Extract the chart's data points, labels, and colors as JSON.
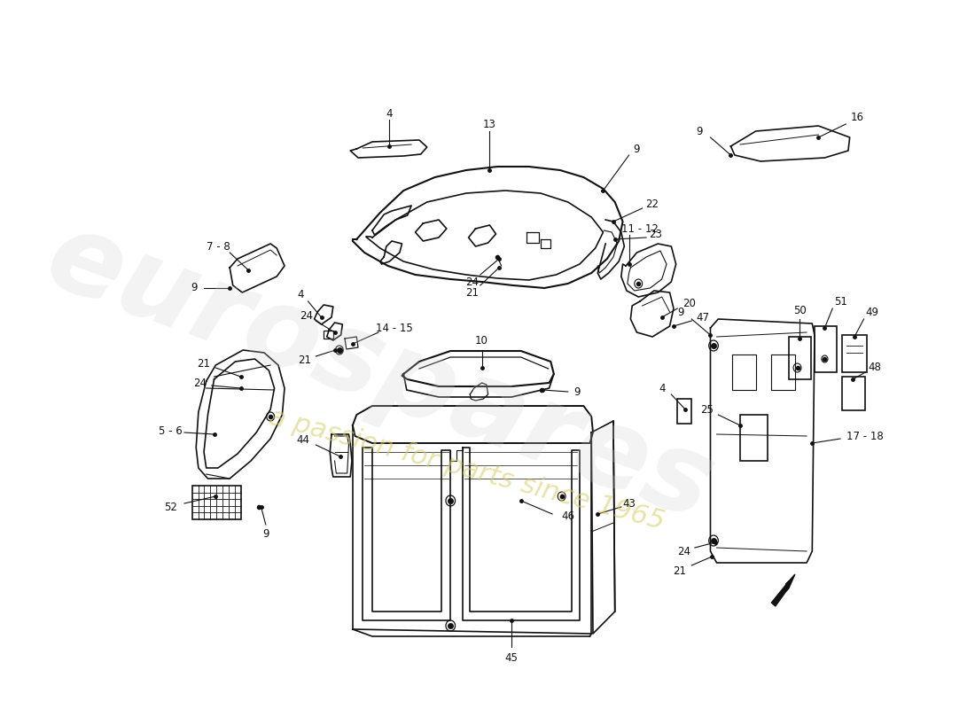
{
  "background_color": "#ffffff",
  "watermark_text1": "eurospares",
  "watermark_text2": "a passion for parts since 1965",
  "line_color": "#111111",
  "label_color": "#111111",
  "label_fontsize": 8.5,
  "watermark_color1": "#d0d0d0",
  "watermark_color2": "#d4cc66"
}
